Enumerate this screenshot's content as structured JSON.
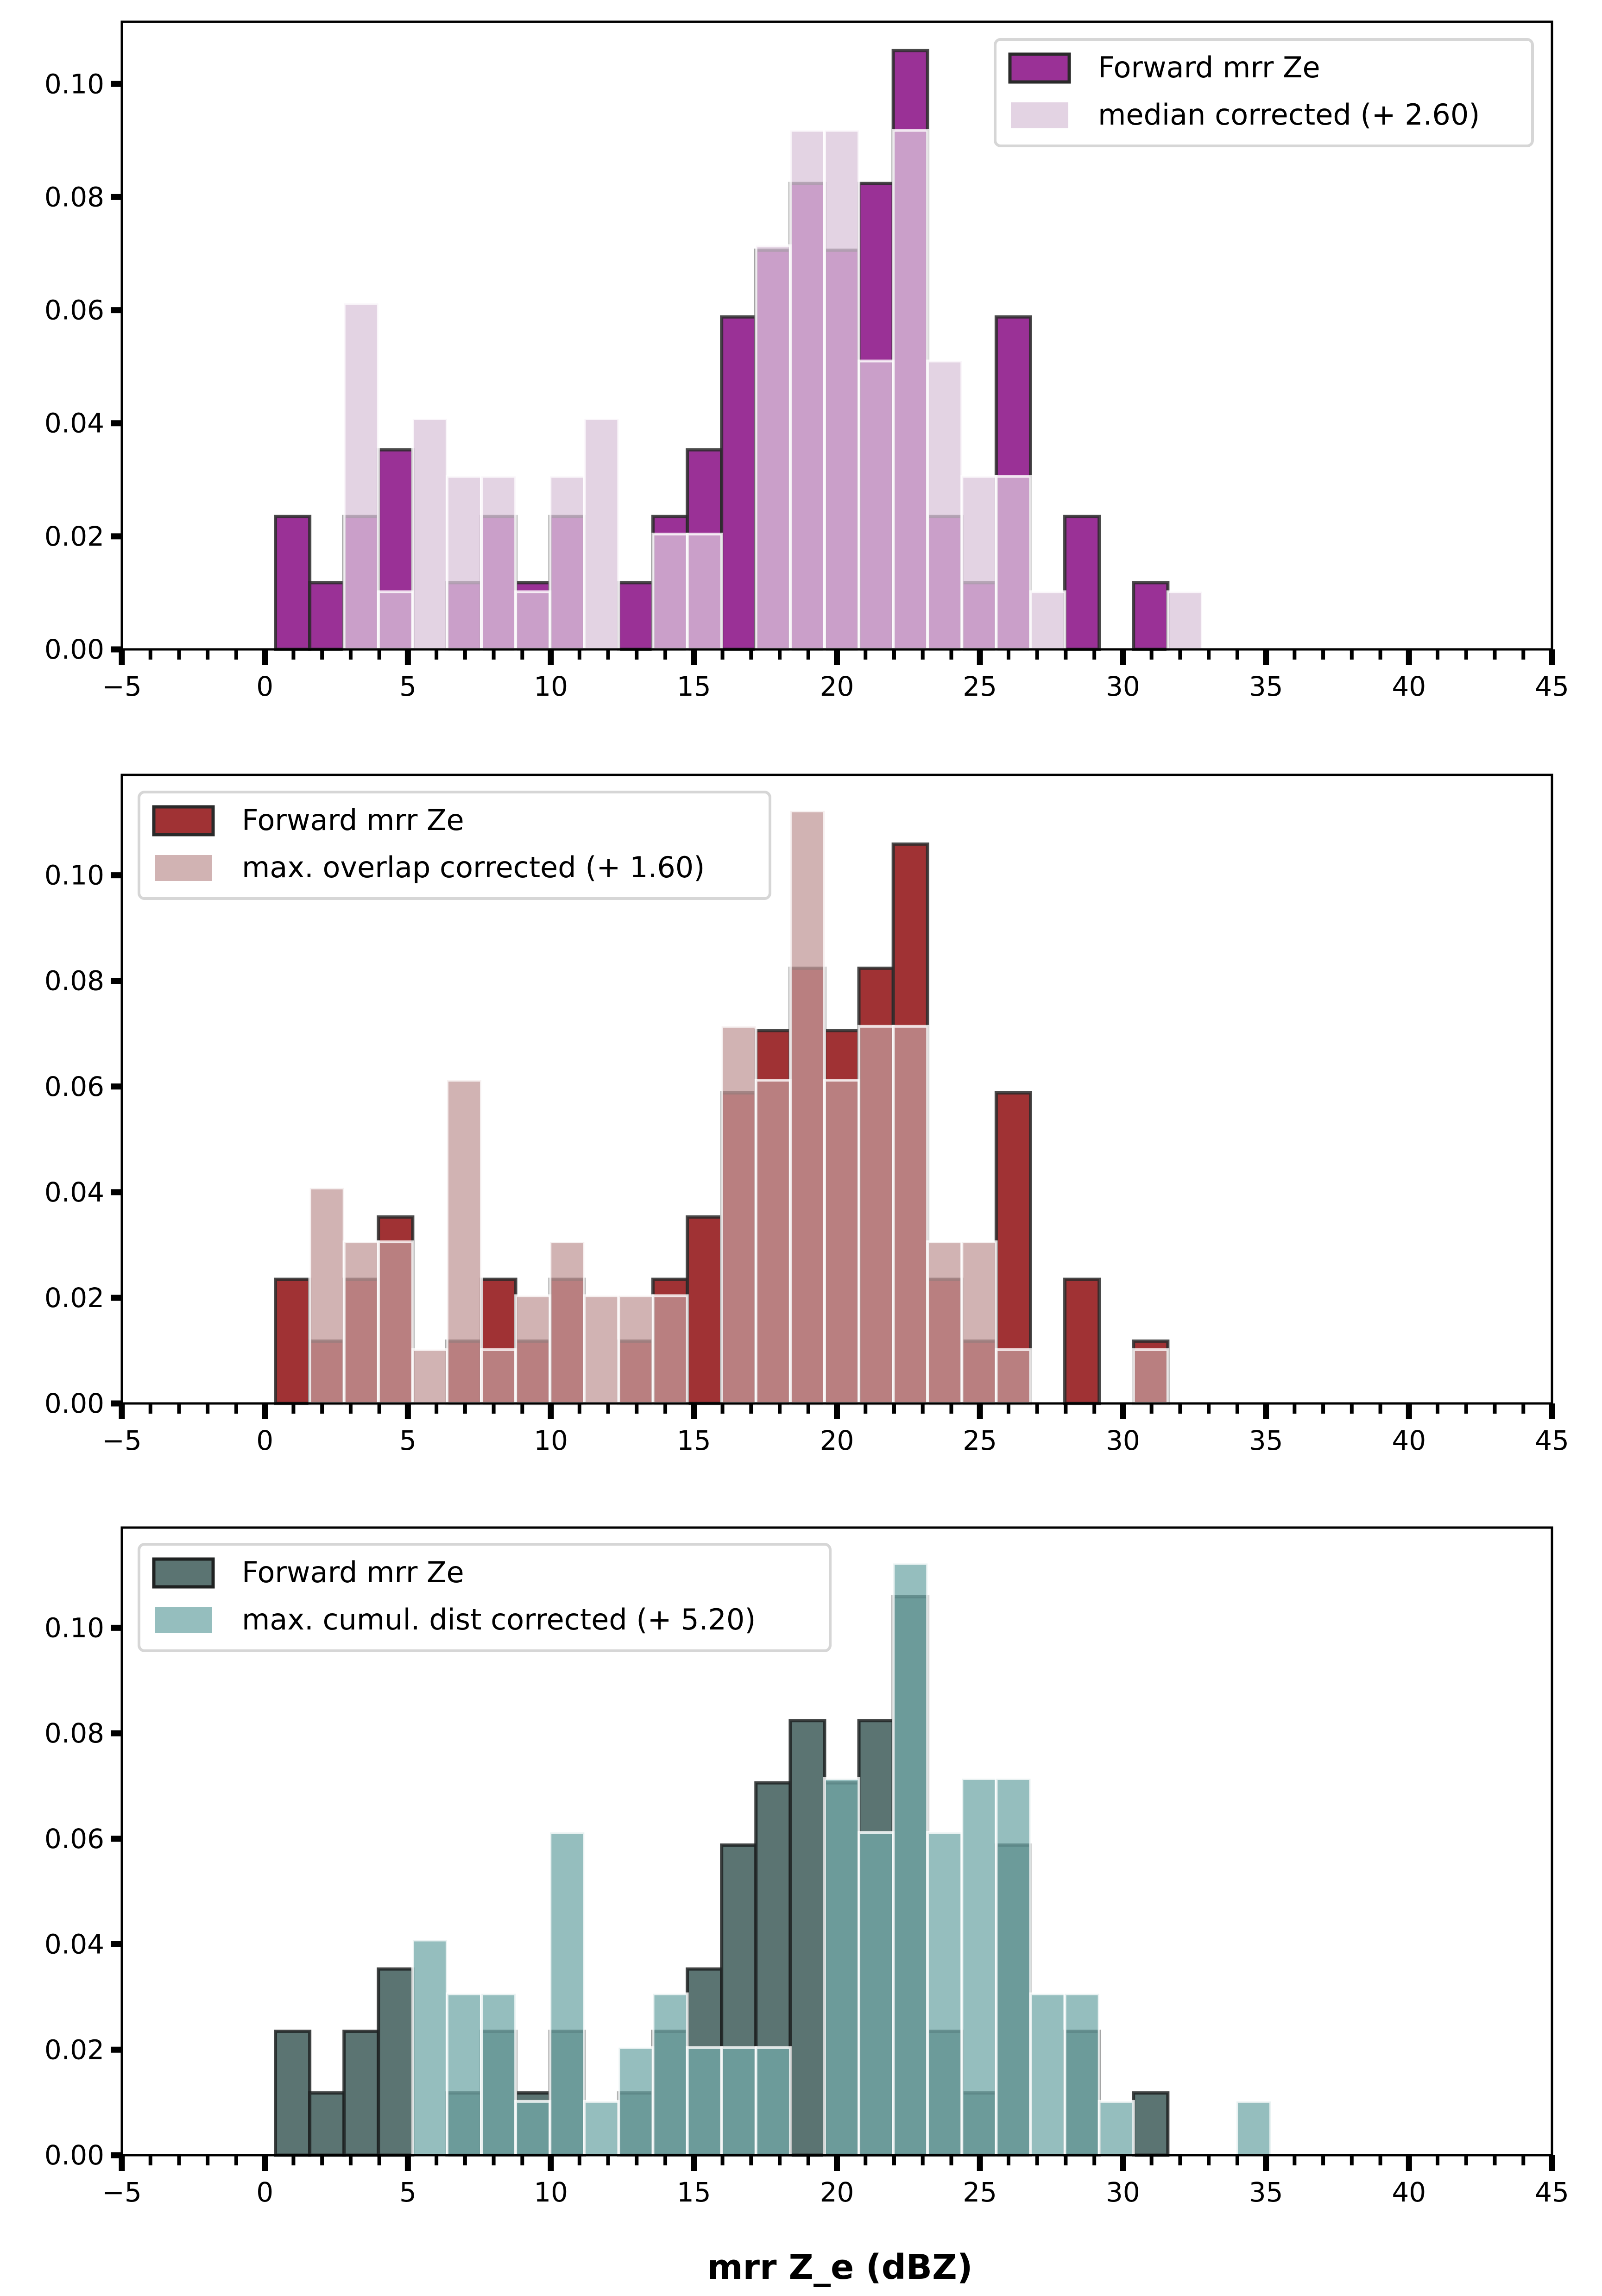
{
  "figure": {
    "xlabel": "mrr Z_e (dBZ)"
  },
  "chart_data": [
    {
      "type": "bar",
      "subtype": "overlaid-histogram",
      "title": "",
      "xlabel": "",
      "ylabel": "",
      "xlim": [
        -5,
        45
      ],
      "ylim": [
        0,
        0.111
      ],
      "xticks": [
        "−5",
        "0",
        "5",
        "10",
        "15",
        "20",
        "25",
        "30",
        "35",
        "40",
        "45"
      ],
      "xtick_values": [
        -5,
        0,
        5,
        10,
        15,
        20,
        25,
        30,
        35,
        40,
        45
      ],
      "yticks": [
        "0.00",
        "0.02",
        "0.04",
        "0.06",
        "0.08",
        "0.10"
      ],
      "ytick_values": [
        0,
        0.02,
        0.04,
        0.06,
        0.08,
        0.1
      ],
      "grid": false,
      "legend_position": "top-right",
      "bin_start": 0.37,
      "bin_width": 1.2,
      "series": [
        {
          "name": "Forward mrr Ze",
          "color": "#9a3196",
          "edgecolor": "#2a2a2a",
          "values": [
            0.0235,
            0.0118,
            0.0235,
            0.0353,
            0,
            0.0118,
            0.0235,
            0.0118,
            0.0235,
            0,
            0.0118,
            0.0235,
            0.0353,
            0.0588,
            0.0706,
            0.0824,
            0.0706,
            0.0824,
            0.1059,
            0.0235,
            0.0118,
            0.0588,
            0,
            0.0235,
            0,
            0.0118,
            0,
            0,
            0
          ]
        },
        {
          "name": "median corrected (+ 2.60)",
          "color": "#dac4da",
          "edgecolor": "#ffffff",
          "values": [
            0,
            0,
            0.0612,
            0.0102,
            0.0408,
            0.0306,
            0.0306,
            0.0102,
            0.0306,
            0.0408,
            0,
            0.0204,
            0.0204,
            0,
            0.0714,
            0.0918,
            0.0918,
            0.051,
            0.0918,
            0.051,
            0.0306,
            0.0306,
            0.0102,
            0,
            0,
            0,
            0.0102,
            0,
            0
          ]
        }
      ]
    },
    {
      "type": "bar",
      "subtype": "overlaid-histogram",
      "title": "",
      "xlabel": "",
      "ylabel": "",
      "xlim": [
        -5,
        45
      ],
      "ylim": [
        0,
        0.119
      ],
      "xticks": [
        "−5",
        "0",
        "5",
        "10",
        "15",
        "20",
        "25",
        "30",
        "35",
        "40",
        "45"
      ],
      "xtick_values": [
        -5,
        0,
        5,
        10,
        15,
        20,
        25,
        30,
        35,
        40,
        45
      ],
      "yticks": [
        "0.00",
        "0.02",
        "0.04",
        "0.06",
        "0.08",
        "0.10"
      ],
      "ytick_values": [
        0,
        0.02,
        0.04,
        0.06,
        0.08,
        0.1
      ],
      "grid": false,
      "legend_position": "top-left",
      "bin_start": 0.37,
      "bin_width": 1.2,
      "series": [
        {
          "name": "Forward mrr Ze",
          "color": "#a03234",
          "edgecolor": "#2a2a2a",
          "values": [
            0.0235,
            0.0118,
            0.0235,
            0.0353,
            0,
            0.0118,
            0.0235,
            0.0118,
            0.0235,
            0,
            0.0118,
            0.0235,
            0.0353,
            0.0588,
            0.0706,
            0.0824,
            0.0706,
            0.0824,
            0.1059,
            0.0235,
            0.0118,
            0.0588,
            0,
            0.0235,
            0,
            0.0118,
            0,
            0,
            0
          ]
        },
        {
          "name": "max. overlap corrected (+ 1.60)",
          "color": "#c29a9a",
          "edgecolor": "#ffffff",
          "values": [
            0,
            0.0408,
            0.0306,
            0.0306,
            0.0102,
            0.0612,
            0.0102,
            0.0204,
            0.0306,
            0.0204,
            0.0204,
            0.0204,
            0,
            0.0714,
            0.0612,
            0.1122,
            0.0612,
            0.0714,
            0.0714,
            0.0306,
            0.0306,
            0.0102,
            0,
            0,
            0,
            0.0102,
            0,
            0,
            0
          ]
        }
      ]
    },
    {
      "type": "bar",
      "subtype": "overlaid-histogram",
      "title": "",
      "xlabel": "mrr Z_e (dBZ)",
      "ylabel": "",
      "xlim": [
        -5,
        45
      ],
      "ylim": [
        0,
        0.119
      ],
      "xticks": [
        "−5",
        "0",
        "5",
        "10",
        "15",
        "20",
        "25",
        "30",
        "35",
        "40",
        "45"
      ],
      "xtick_values": [
        -5,
        0,
        5,
        10,
        15,
        20,
        25,
        30,
        35,
        40,
        45
      ],
      "yticks": [
        "0.00",
        "0.02",
        "0.04",
        "0.06",
        "0.08",
        "0.10"
      ],
      "ytick_values": [
        0,
        0.02,
        0.04,
        0.06,
        0.08,
        0.1
      ],
      "grid": false,
      "legend_position": "top-left",
      "bin_start": 0.37,
      "bin_width": 1.2,
      "series": [
        {
          "name": "Forward mrr Ze",
          "color": "#5b7472",
          "edgecolor": "#1f2222",
          "values": [
            0.0235,
            0.0118,
            0.0235,
            0.0353,
            0,
            0.0118,
            0.0235,
            0.0118,
            0.0235,
            0,
            0.0118,
            0.0235,
            0.0353,
            0.0588,
            0.0706,
            0.0824,
            0.0706,
            0.0824,
            0.1059,
            0.0235,
            0.0118,
            0.0588,
            0,
            0.0235,
            0,
            0.0118,
            0,
            0,
            0
          ]
        },
        {
          "name": "max. cumul. dist corrected (+ 5.20)",
          "color": "#71a8a8",
          "edgecolor": "#ffffff",
          "values": [
            0,
            0,
            0,
            0,
            0.0408,
            0.0306,
            0.0306,
            0.0102,
            0.0612,
            0.0102,
            0.0204,
            0.0306,
            0.0204,
            0.0204,
            0.0204,
            0,
            0.0714,
            0.0612,
            0.1122,
            0.0612,
            0.0714,
            0.0714,
            0.0306,
            0.0306,
            0.0102,
            0,
            0,
            0,
            0.0102
          ]
        }
      ]
    }
  ]
}
